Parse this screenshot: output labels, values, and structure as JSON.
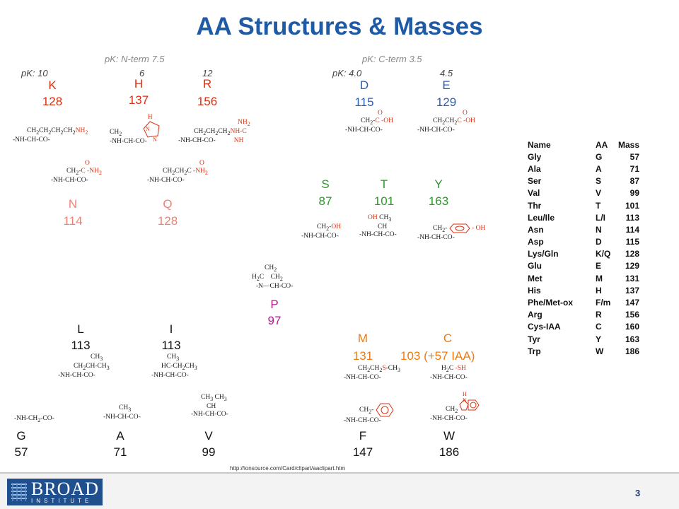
{
  "title": "AA Structures & Masses",
  "pk": {
    "nterm": "pK:   N-term 7.5",
    "cterm": "pK:   C-term 3.5",
    "basic": "pK:  10",
    "basic_h": "6",
    "basic_r": "12",
    "acidic": "pK:  4.0",
    "acidic_e": "4.5"
  },
  "amino_acids": {
    "K": {
      "letter": "K",
      "mass": "128"
    },
    "H": {
      "letter": "H",
      "mass": "137"
    },
    "R": {
      "letter": "R",
      "mass": "156"
    },
    "N": {
      "letter": "N",
      "mass": "114"
    },
    "Q": {
      "letter": "Q",
      "mass": "128"
    },
    "D": {
      "letter": "D",
      "mass": "115"
    },
    "E": {
      "letter": "E",
      "mass": "129"
    },
    "S": {
      "letter": "S",
      "mass": "87"
    },
    "T": {
      "letter": "T",
      "mass": "101"
    },
    "Y": {
      "letter": "Y",
      "mass": "163"
    },
    "P": {
      "letter": "P",
      "mass": "97"
    },
    "L": {
      "letter": "L",
      "mass": "113"
    },
    "I": {
      "letter": "I",
      "mass": "113"
    },
    "M": {
      "letter": "M",
      "mass": "131"
    },
    "C": {
      "letter": "C",
      "mass": "103 (+57 IAA)"
    },
    "G": {
      "letter": "G",
      "mass": "57"
    },
    "A": {
      "letter": "A",
      "mass": "71"
    },
    "V": {
      "letter": "V",
      "mass": "99"
    },
    "F": {
      "letter": "F",
      "mass": "147"
    },
    "W": {
      "letter": "W",
      "mass": "186"
    }
  },
  "mass_table": {
    "headers": [
      "Name",
      "AA",
      "Mass"
    ],
    "rows": [
      [
        "Gly",
        "G",
        "57"
      ],
      [
        "Ala",
        "A",
        "71"
      ],
      [
        "Ser",
        "S",
        "87"
      ],
      [
        "Val",
        "V",
        "99"
      ],
      [
        "Thr",
        "T",
        "101"
      ],
      [
        "Leu/Ile",
        "L/I",
        "113"
      ],
      [
        "Asn",
        "N",
        "114"
      ],
      [
        "Asp",
        "D",
        "115"
      ],
      [
        "Lys/Gln",
        "K/Q",
        "128"
      ],
      [
        "Glu",
        "E",
        "129"
      ],
      [
        "Met",
        "M",
        "131"
      ],
      [
        "His",
        "H",
        "137"
      ],
      [
        "Phe/Met-ox",
        "F/m",
        "147"
      ],
      [
        "Arg",
        "R",
        "156"
      ],
      [
        "Cys-IAA",
        "C",
        "160"
      ],
      [
        "Tyr",
        "Y",
        "163"
      ],
      [
        "Trp",
        "W",
        "186"
      ]
    ]
  },
  "source_url": "http://ionsource.com/Card/clipart/aaclipart.htm",
  "page_number": "3",
  "logo": {
    "name": "BROAD",
    "sub": "INSTITUTE"
  },
  "colors": {
    "title": "#1f5aa6",
    "basic": "#d9300f",
    "amide": "#f08070",
    "acidic": "#2b5fb4",
    "hydroxyl": "#2a9a2a",
    "proline": "#b0208c",
    "sulfur": "#f07a10"
  }
}
